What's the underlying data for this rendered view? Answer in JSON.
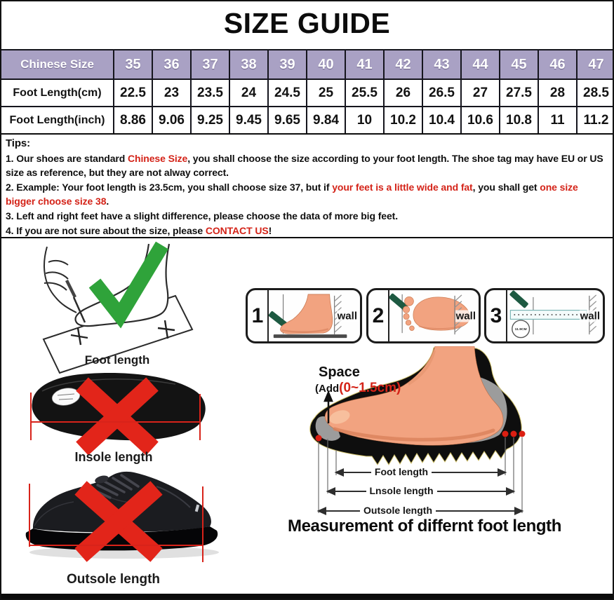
{
  "title": "SIZE GUIDE",
  "table": {
    "rows": [
      {
        "label": "Chinese Size",
        "values": [
          "35",
          "36",
          "37",
          "38",
          "39",
          "40",
          "41",
          "42",
          "43",
          "44",
          "45",
          "46",
          "47"
        ]
      },
      {
        "label": "Foot Length(cm)",
        "values": [
          "22.5",
          "23",
          "23.5",
          "24",
          "24.5",
          "25",
          "25.5",
          "26",
          "26.5",
          "27",
          "27.5",
          "28",
          "28.5"
        ]
      },
      {
        "label": "Foot Length(inch)",
        "values": [
          "8.86",
          "9.06",
          "9.25",
          "9.45",
          "9.65",
          "9.84",
          "10",
          "10.2",
          "10.4",
          "10.6",
          "10.8",
          "11",
          "11.2"
        ]
      }
    ]
  },
  "tips": {
    "heading": "Tips:",
    "lines": [
      {
        "segments": [
          {
            "text": "1. Our shoes are standard ",
            "red": false
          },
          {
            "text": "Chinese Size",
            "red": true
          },
          {
            "text": ", you shall choose the size according to your foot length. The shoe tag may have EU or US size as reference, but they are not alway correct.",
            "red": false
          }
        ]
      },
      {
        "segments": [
          {
            "text": "2. Example: Your foot length is 23.5cm, you shall choose size 37, but if ",
            "red": false
          },
          {
            "text": "your feet is a little wide and fat",
            "red": true
          },
          {
            "text": ", you shall get ",
            "red": false
          },
          {
            "text": "one size bigger choose size 38",
            "red": true
          },
          {
            "text": ".",
            "red": false
          }
        ]
      },
      {
        "segments": [
          {
            "text": "3. Left and right feet have a slight difference, please choose the data of more big feet.",
            "red": false
          }
        ]
      },
      {
        "segments": [
          {
            "text": "4. If you are not sure about the size, please ",
            "red": false
          },
          {
            "text": "CONTACT US",
            "red": true
          },
          {
            "text": "!",
            "red": false
          }
        ]
      }
    ]
  },
  "measure_illustration": {
    "label": "Foot length"
  },
  "panels": [
    {
      "num": "1",
      "wall_label": "wall"
    },
    {
      "num": "2",
      "wall_label": "wall"
    },
    {
      "num": "3",
      "wall_label": "wall",
      "ruler_note": "11.9CM"
    }
  ],
  "foot_diagram": {
    "space_label": "Space",
    "add_prefix": "(Add",
    "add_value": "(0~1.5cm)",
    "arrows": [
      "Foot length",
      "Lnsole length",
      "Outsole length"
    ],
    "caption": "Measurement of differnt foot length"
  },
  "insole": {
    "label": "Insole length"
  },
  "shoe": {
    "label": "Outsole length"
  },
  "colors": {
    "header_bg": "#a9a1c4",
    "red_text": "#d42318",
    "x_red": "#e2251a",
    "measure_red": "#d8231a",
    "check_green": "#2fa33a",
    "wedge_green": "#1d5941",
    "skin": "#f2a380"
  }
}
